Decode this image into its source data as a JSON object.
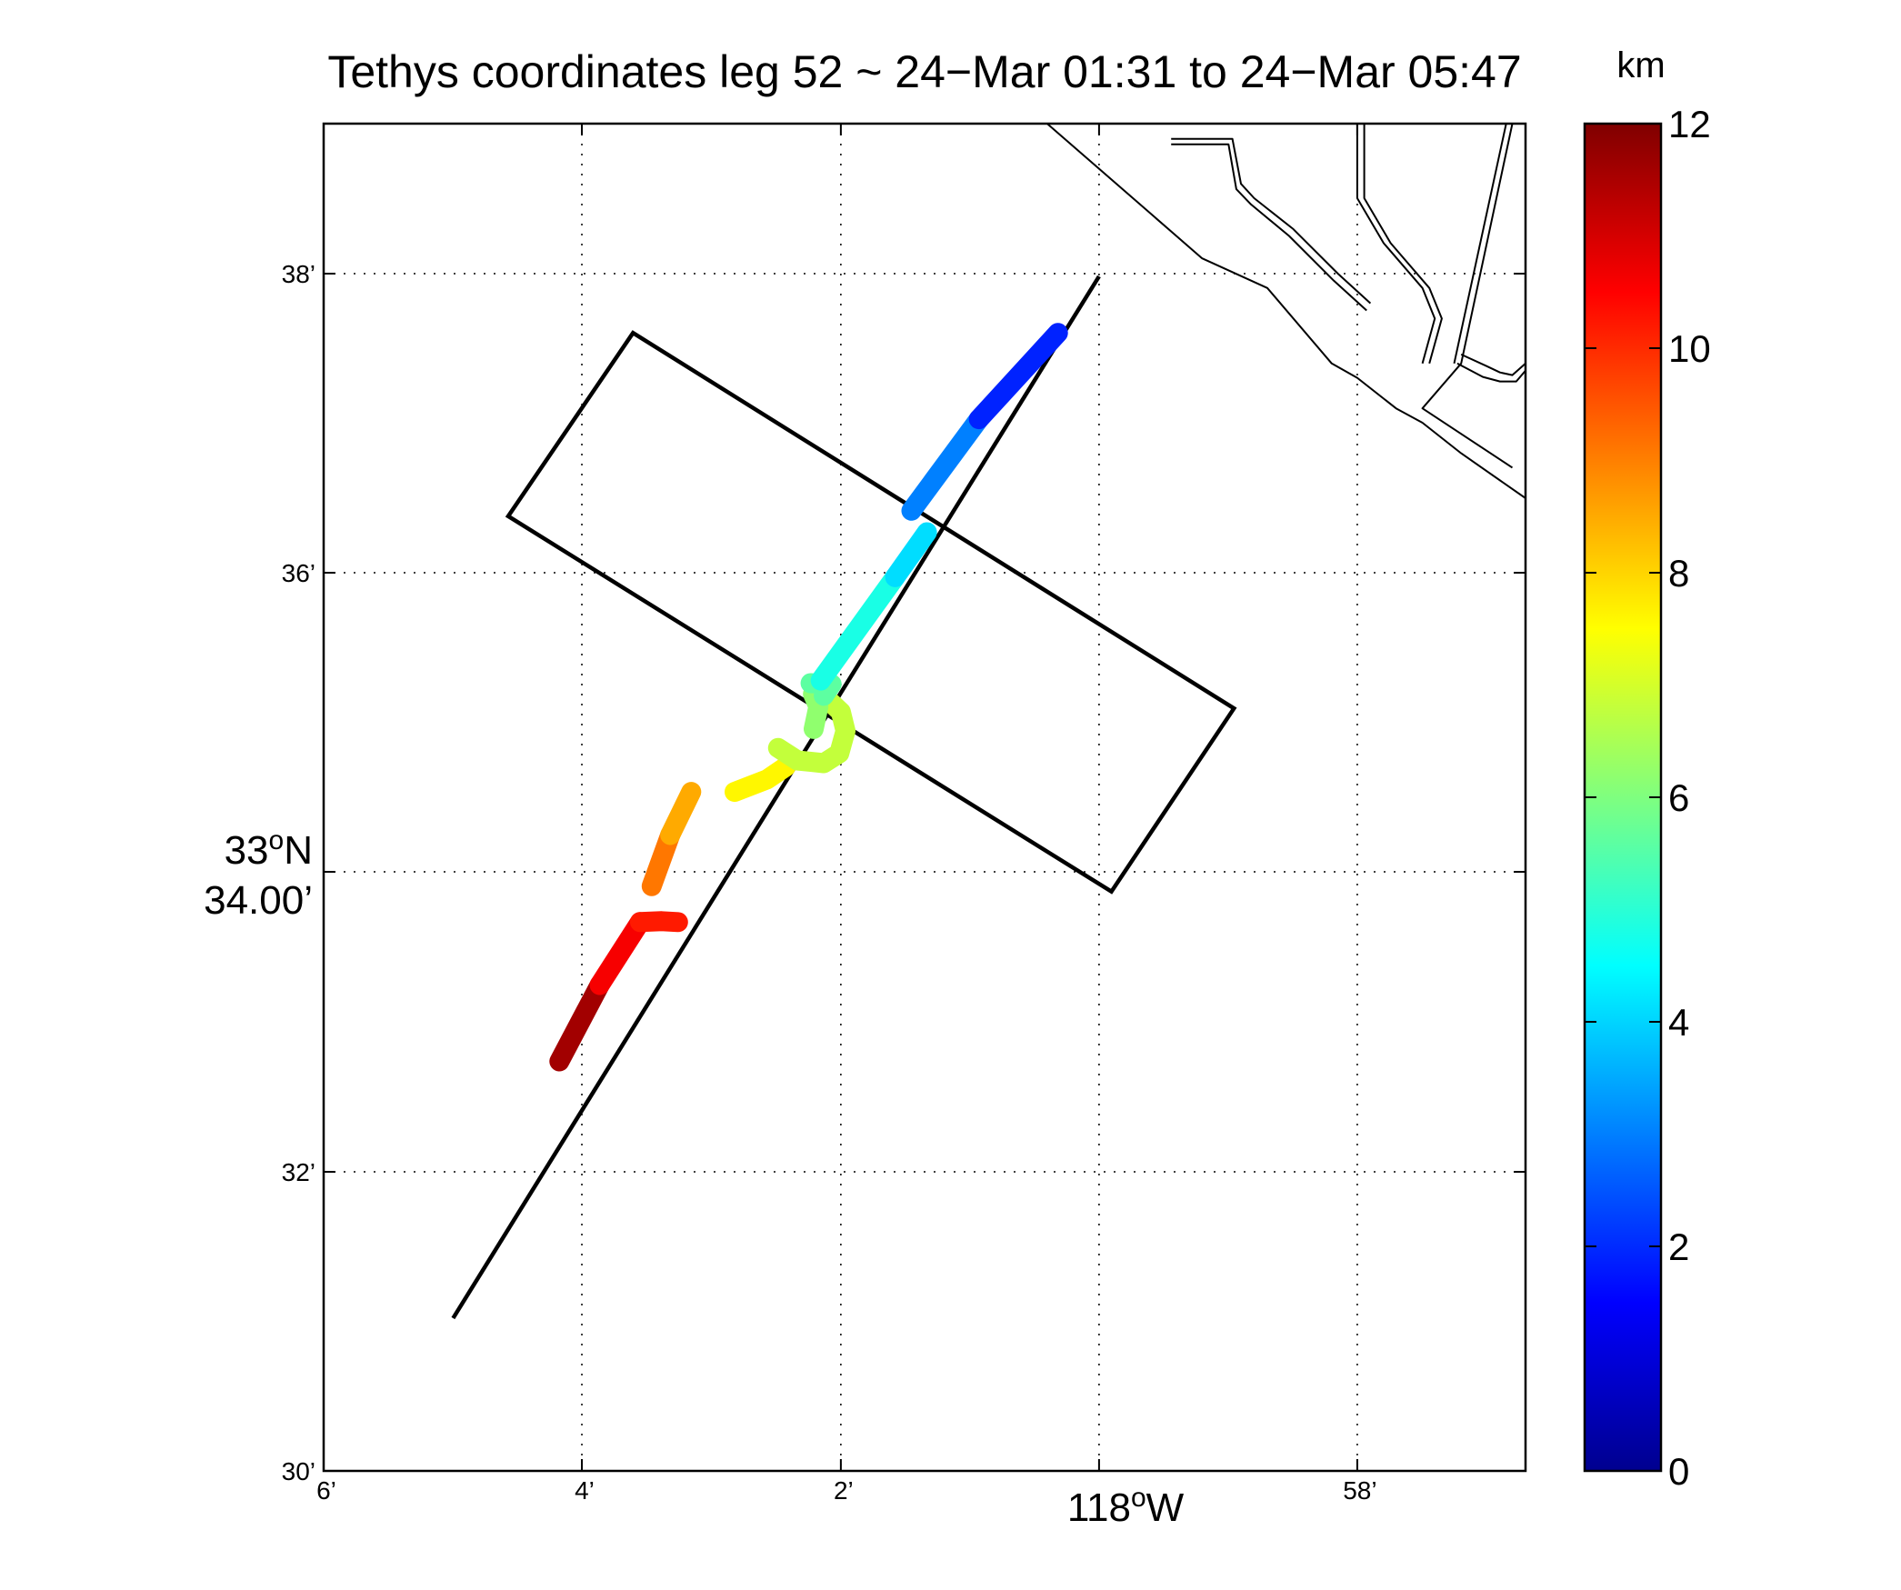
{
  "chart_data": {
    "type": "scatter",
    "title": "Tethys coordinates leg 52 ~ 24−Mar 01:31 to 24−Mar 05:47",
    "x_axis": {
      "min": -118.1,
      "max": -117.945,
      "ticks": [
        {
          "value": -118.1,
          "label": "6’"
        },
        {
          "value": -118.0667,
          "label": "4’"
        },
        {
          "value": -118.0333,
          "label": "2’"
        },
        {
          "value": -117.9667,
          "label": "58’"
        }
      ],
      "major_label": {
        "value": -118.0,
        "degrees": "118",
        "suffix": "W"
      }
    },
    "y_axis": {
      "min": 33.5,
      "max": 33.65,
      "ticks": [
        {
          "value": 33.5,
          "label": "30’"
        },
        {
          "value": 33.5333,
          "label": "32’"
        },
        {
          "value": 33.6,
          "label": "36’"
        },
        {
          "value": 33.6333,
          "label": "38’"
        }
      ],
      "major_label": {
        "value": 33.5667,
        "degrees": "33",
        "suffix": "N",
        "minutes": "34.00’"
      }
    },
    "grid": true,
    "colorbar": {
      "label": "km",
      "min": 0,
      "max": 12,
      "ticks": [
        {
          "value": 0,
          "label": "0"
        },
        {
          "value": 2,
          "label": "2"
        },
        {
          "value": 4,
          "label": "4"
        },
        {
          "value": 6,
          "label": "6"
        },
        {
          "value": 8,
          "label": "8"
        },
        {
          "value": 10,
          "label": "10"
        },
        {
          "value": 12,
          "label": "12"
        }
      ]
    },
    "planned_line": [
      [
        -118.0833,
        33.517
      ],
      [
        -118.0,
        33.633
      ]
    ],
    "box": [
      [
        -118.0601,
        33.6267
      ],
      [
        -118.0762,
        33.6063
      ],
      [
        -117.9984,
        33.5645
      ],
      [
        -117.9826,
        33.5849
      ]
    ],
    "coastline": [
      [
        [
          -118.0067,
          33.65
        ],
        [
          -117.9867,
          33.635
        ],
        [
          -117.9783,
          33.6317
        ],
        [
          -117.97,
          33.6233
        ],
        [
          -117.9667,
          33.6217
        ],
        [
          -117.9617,
          33.6183
        ],
        [
          -117.9583,
          33.6167
        ],
        [
          -117.9533,
          33.6133
        ],
        [
          -117.945,
          33.6083
        ]
      ],
      [
        [
          -117.9907,
          33.6483
        ],
        [
          -117.9828,
          33.6483
        ],
        [
          -117.9817,
          33.6433
        ],
        [
          -117.98,
          33.6417
        ],
        [
          -117.975,
          33.6383
        ],
        [
          -117.9692,
          33.6333
        ],
        [
          -117.965,
          33.63
        ]
      ],
      [
        [
          -117.9907,
          33.6477
        ],
        [
          -117.9833,
          33.6477
        ],
        [
          -117.9823,
          33.6427
        ],
        [
          -117.9804,
          33.641
        ],
        [
          -117.9755,
          33.6375
        ],
        [
          -117.9697,
          33.6325
        ],
        [
          -117.9655,
          33.6292
        ]
      ],
      [
        [
          -117.9667,
          33.65
        ],
        [
          -117.9667,
          33.6417
        ],
        [
          -117.9633,
          33.6367
        ],
        [
          -117.9583,
          33.6317
        ],
        [
          -117.9567,
          33.6283
        ],
        [
          -117.9583,
          33.6233
        ]
      ],
      [
        [
          -117.9658,
          33.65
        ],
        [
          -117.9658,
          33.6417
        ],
        [
          -117.9624,
          33.6367
        ],
        [
          -117.9574,
          33.6317
        ],
        [
          -117.9558,
          33.6283
        ],
        [
          -117.9574,
          33.6233
        ]
      ],
      [
        [
          -117.9467,
          33.65
        ],
        [
          -117.9533,
          33.6233
        ],
        [
          -117.9583,
          33.6183
        ],
        [
          -117.9467,
          33.6117
        ]
      ],
      [
        [
          -117.9475,
          33.65
        ],
        [
          -117.9542,
          33.6233
        ]
      ],
      [
        [
          -117.9533,
          33.6243
        ],
        [
          -117.95,
          33.623
        ],
        [
          -117.9483,
          33.6223
        ],
        [
          -117.9467,
          33.622
        ],
        [
          -117.945,
          33.6233
        ]
      ],
      [
        [
          -117.9538,
          33.6233
        ],
        [
          -117.9505,
          33.6218
        ],
        [
          -117.9483,
          33.6213
        ],
        [
          -117.9462,
          33.6213
        ],
        [
          -117.945,
          33.6225
        ]
      ]
    ],
    "track": [
      {
        "points": [
          [
            -118.0696,
            33.5456
          ],
          [
            -118.0644,
            33.5541
          ]
        ],
        "value": 11.6
      },
      {
        "points": [
          [
            -118.0644,
            33.5541
          ],
          [
            -118.0592,
            33.5611
          ]
        ],
        "value": 10.6
      },
      {
        "points": [
          [
            -118.0592,
            33.5611
          ],
          [
            -118.0564,
            33.5612
          ],
          [
            -118.0543,
            33.5611
          ]
        ],
        "value": 10.2
      },
      {
        "points": [
          [
            -118.0577,
            33.5651
          ],
          [
            -118.0553,
            33.5708
          ]
        ],
        "value": 9.1
      },
      {
        "points": [
          [
            -118.0553,
            33.5708
          ],
          [
            -118.0526,
            33.5756
          ]
        ],
        "value": 8.5
      },
      {
        "points": [
          [
            -118.047,
            33.5756
          ],
          [
            -118.0428,
            33.577
          ],
          [
            -118.0404,
            33.5784
          ]
        ],
        "value": 7.6
      },
      {
        "points": [
          [
            -118.0414,
            33.5805
          ],
          [
            -118.0389,
            33.5791
          ],
          [
            -118.0355,
            33.5788
          ],
          [
            -118.0335,
            33.5799
          ],
          [
            -118.0327,
            33.5824
          ],
          [
            -118.0333,
            33.5845
          ],
          [
            -118.0355,
            33.5863
          ]
        ],
        "value": 6.8
      },
      {
        "points": [
          [
            -118.0368,
            33.5826
          ],
          [
            -118.0362,
            33.5851
          ],
          [
            -118.0369,
            33.5865
          ]
        ],
        "value": 6.2
      },
      {
        "points": [
          [
            -118.0355,
            33.5863
          ],
          [
            -118.0345,
            33.5876
          ],
          [
            -118.0372,
            33.5877
          ]
        ],
        "value": 5.6
      },
      {
        "points": [
          [
            -118.0359,
            33.588
          ],
          [
            -118.0263,
            33.5995
          ]
        ],
        "value": 4.8
      },
      {
        "points": [
          [
            -118.0263,
            33.5995
          ],
          [
            -118.0222,
            33.6045
          ]
        ],
        "value": 4.1
      },
      {
        "points": [
          [
            -118.0242,
            33.6069
          ],
          [
            -118.0155,
            33.6171
          ]
        ],
        "value": 3.0
      },
      {
        "points": [
          [
            -118.0155,
            33.6171
          ],
          [
            -118.0053,
            33.6267
          ]
        ],
        "value": 1.9
      }
    ]
  }
}
